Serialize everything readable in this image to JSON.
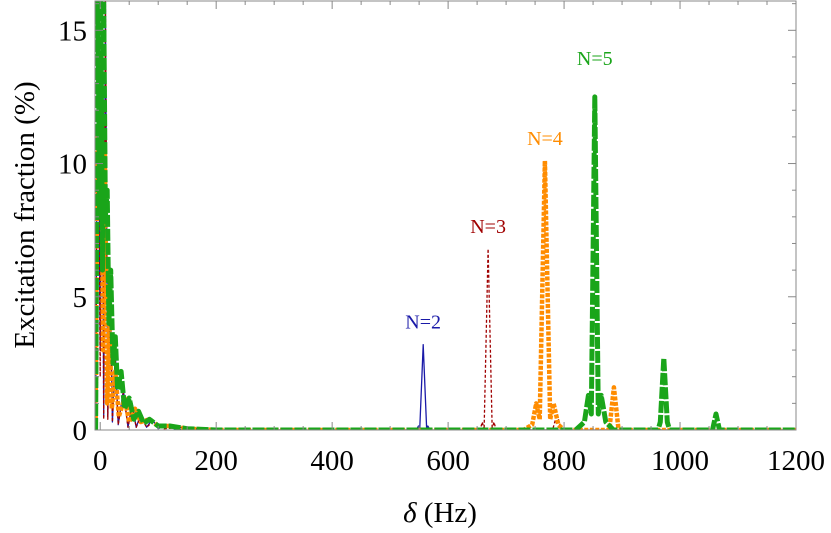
{
  "chart_data": {
    "type": "line",
    "title": "",
    "xlabel_symbol": "δ",
    "xlabel_unit": "(Hz)",
    "ylabel": "Excitation fraction (%)",
    "xlim": [
      -9,
      1200
    ],
    "ylim": [
      0,
      16.1
    ],
    "xticks": [
      "0",
      "200",
      "400",
      "600",
      "800",
      "1000",
      "1200"
    ],
    "xtick_values": [
      0,
      200,
      400,
      600,
      800,
      1000,
      1200
    ],
    "yticks": [
      "0",
      "5",
      "10",
      "15"
    ],
    "ytick_values": [
      0,
      5,
      10,
      15
    ],
    "grid": false,
    "series": [
      {
        "name": "N=2",
        "label": "N=2",
        "color": "#1a1aa8",
        "style": "solid",
        "label_pos": [
          557,
          3.8
        ],
        "points": [
          [
            -8,
            0
          ],
          [
            -4,
            16.1
          ],
          [
            0,
            3
          ],
          [
            3,
            16.1
          ],
          [
            6,
            0.5
          ],
          [
            9,
            16.1
          ],
          [
            13,
            0.5
          ],
          [
            17,
            5.7
          ],
          [
            21,
            0.3
          ],
          [
            26,
            2.9
          ],
          [
            31,
            0.2
          ],
          [
            40,
            1.5
          ],
          [
            48,
            0.1
          ],
          [
            55,
            1.0
          ],
          [
            62,
            0.1
          ],
          [
            70,
            0.6
          ],
          [
            80,
            0.1
          ],
          [
            90,
            0.4
          ],
          [
            100,
            0.05
          ],
          [
            115,
            0.2
          ],
          [
            130,
            0.02
          ],
          [
            160,
            0.05
          ],
          [
            200,
            0
          ],
          [
            545,
            0
          ],
          [
            549,
            0.15
          ],
          [
            551,
            0
          ],
          [
            557,
            3.2
          ],
          [
            563,
            0
          ],
          [
            565,
            0.15
          ],
          [
            569,
            0
          ],
          [
            1200,
            0
          ]
        ]
      },
      {
        "name": "N=3",
        "label": "N=3",
        "color": "#a00000",
        "style": "dashed",
        "label_pos": [
          669,
          7.4
        ],
        "points": [
          [
            -8,
            0
          ],
          [
            -4,
            16.1
          ],
          [
            0,
            2
          ],
          [
            3,
            16.1
          ],
          [
            6,
            0.4
          ],
          [
            9,
            16.1
          ],
          [
            13,
            0.4
          ],
          [
            17,
            5.3
          ],
          [
            21,
            0.3
          ],
          [
            26,
            2.6
          ],
          [
            31,
            0.2
          ],
          [
            40,
            1.4
          ],
          [
            48,
            0.1
          ],
          [
            55,
            0.9
          ],
          [
            62,
            0.1
          ],
          [
            70,
            0.5
          ],
          [
            80,
            0.1
          ],
          [
            90,
            0.3
          ],
          [
            110,
            0.05
          ],
          [
            140,
            0.1
          ],
          [
            200,
            0
          ],
          [
            655,
            0
          ],
          [
            659,
            0.3
          ],
          [
            662,
            0
          ],
          [
            669,
            6.8
          ],
          [
            676,
            0
          ],
          [
            679,
            0.3
          ],
          [
            683,
            0
          ],
          [
            780,
            0
          ],
          [
            788,
            0.6
          ],
          [
            795,
            0
          ],
          [
            1200,
            0
          ]
        ]
      },
      {
        "name": "N=4",
        "label": "N=4",
        "color": "#ff8c00",
        "style": "dotted",
        "label_pos": [
          767,
          10.7
        ],
        "points": [
          [
            -8,
            0
          ],
          [
            -5,
            11.2
          ],
          [
            -1,
            9
          ],
          [
            2,
            11.2
          ],
          [
            5,
            3
          ],
          [
            8,
            10.5
          ],
          [
            12,
            1
          ],
          [
            16,
            3.9
          ],
          [
            20,
            0.8
          ],
          [
            26,
            2.2
          ],
          [
            32,
            0.5
          ],
          [
            42,
            1.2
          ],
          [
            50,
            0.3
          ],
          [
            60,
            0.8
          ],
          [
            70,
            0.3
          ],
          [
            85,
            0.4
          ],
          [
            100,
            0.15
          ],
          [
            120,
            0.15
          ],
          [
            150,
            0.05
          ],
          [
            200,
            0
          ],
          [
            730,
            0
          ],
          [
            745,
            0.2
          ],
          [
            752,
            1.0
          ],
          [
            758,
            0.4
          ],
          [
            767,
            10.1
          ],
          [
            776,
            0.4
          ],
          [
            782,
            1.0
          ],
          [
            790,
            0.2
          ],
          [
            800,
            0
          ],
          [
            878,
            0
          ],
          [
            886,
            1.6
          ],
          [
            894,
            0
          ],
          [
            1200,
            0
          ]
        ]
      },
      {
        "name": "N=5",
        "label": "N=5",
        "color": "#1aa51a",
        "style": "dashed",
        "label_pos": [
          853,
          13.7
        ],
        "points": [
          [
            -8,
            0
          ],
          [
            -4,
            16.1
          ],
          [
            -1,
            8
          ],
          [
            1,
            16.1
          ],
          [
            4,
            6
          ],
          [
            6,
            16.1
          ],
          [
            9,
            8
          ],
          [
            12,
            9
          ],
          [
            15,
            4
          ],
          [
            18,
            6
          ],
          [
            22,
            2.5
          ],
          [
            26,
            3.5
          ],
          [
            30,
            1.5
          ],
          [
            36,
            2.2
          ],
          [
            42,
            0.8
          ],
          [
            50,
            1.2
          ],
          [
            58,
            0.4
          ],
          [
            66,
            0.7
          ],
          [
            75,
            0.25
          ],
          [
            85,
            0.4
          ],
          [
            100,
            0.15
          ],
          [
            120,
            0.15
          ],
          [
            150,
            0.05
          ],
          [
            200,
            0
          ],
          [
            820,
            0
          ],
          [
            835,
            0.3
          ],
          [
            842,
            1.3
          ],
          [
            847,
            0.6
          ],
          [
            853,
            12.5
          ],
          [
            859,
            0.6
          ],
          [
            864,
            1.3
          ],
          [
            872,
            0.3
          ],
          [
            885,
            0
          ],
          [
            962,
            0
          ],
          [
            966,
            0.3
          ],
          [
            972,
            2.7
          ],
          [
            978,
            0.3
          ],
          [
            982,
            0
          ],
          [
            1056,
            0
          ],
          [
            1062,
            0.6
          ],
          [
            1068,
            0
          ],
          [
            1200,
            0
          ]
        ]
      }
    ]
  }
}
